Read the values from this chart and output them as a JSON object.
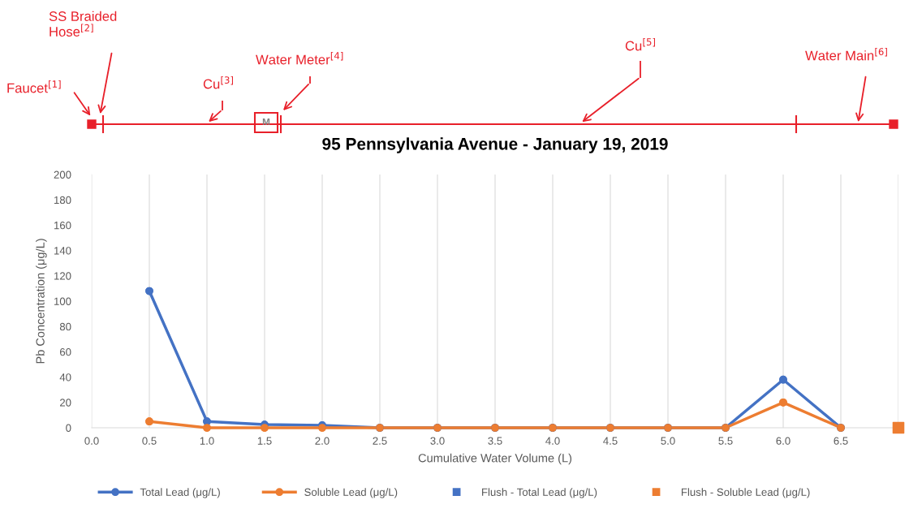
{
  "chart_data": {
    "type": "line",
    "title": "95 Pennsylvania Avenue - January 19, 2019",
    "xlabel": "Cumulative Water Volume (L)",
    "ylabel": "Pb Concentration (μg/L)",
    "categories": [
      "0.0",
      "0.5",
      "1.0",
      "1.5",
      "2.0",
      "2.5",
      "3.0",
      "3.5",
      "4.0",
      "4.5",
      "5.0",
      "5.5",
      "6.0",
      "6.5",
      null
    ],
    "series": [
      {
        "name": "Total Lead (μg/L)",
        "color": "#4472c4",
        "marker": "circle",
        "values": [
          null,
          108,
          5,
          2.5,
          2,
          0,
          0,
          0,
          0,
          0,
          0,
          0,
          38,
          0,
          null
        ]
      },
      {
        "name": "Soluble Lead (μg/L)",
        "color": "#ed7d31",
        "marker": "circle",
        "values": [
          null,
          5,
          0,
          0,
          0,
          0,
          0,
          0,
          0,
          0,
          0,
          0,
          20,
          0,
          null
        ]
      },
      {
        "name": "Flush - Total Lead (μg/L)",
        "color": "#4472c4",
        "type": "scatter",
        "marker": "square",
        "values": [
          null,
          null,
          null,
          null,
          null,
          null,
          null,
          null,
          null,
          null,
          null,
          null,
          null,
          null,
          null
        ]
      },
      {
        "name": "Flush - Soluble Lead (μg/L)",
        "color": "#ed7d31",
        "type": "scatter",
        "marker": "square",
        "values": [
          null,
          null,
          null,
          null,
          null,
          null,
          null,
          null,
          null,
          null,
          null,
          null,
          null,
          null,
          0
        ]
      }
    ],
    "ylim": [
      0,
      200
    ],
    "yticks": [
      0,
      20,
      40,
      60,
      80,
      100,
      120,
      140,
      160,
      180,
      200
    ],
    "grid": "x",
    "legend": "bottom",
    "annotations": [
      "Faucet$^{[1]}$",
      "SS Braided\nHose$^{[2]}$",
      "Cu$^{[3]}$",
      "Water Meter$^{[4]}$",
      "Cu$^{[5]}$",
      "Water Main$^{[6]}$",
      "M"
    ]
  }
}
